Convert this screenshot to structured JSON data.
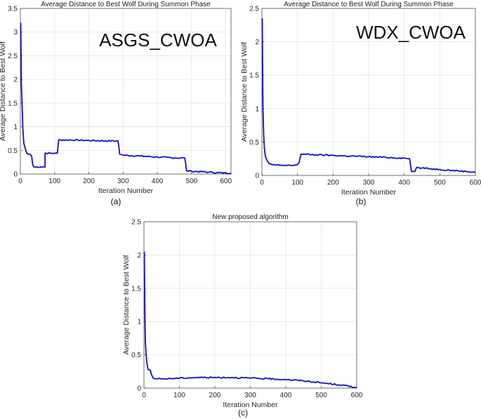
{
  "chart_data": [
    {
      "panel_label": "(a)",
      "type": "line",
      "title": "Average Distance to Best Wolf During Summon Phase",
      "overlay_text": "ASGS_CWOA",
      "xlabel": "Iteration Number",
      "ylabel": "Average Distance to Best Wolf",
      "xlim": [
        0,
        615
      ],
      "ylim": [
        0,
        3.5
      ],
      "xticks": [
        0,
        100,
        200,
        300,
        400,
        500,
        600
      ],
      "yticks": [
        0,
        0.5,
        1,
        1.5,
        2,
        2.5,
        3,
        3.5
      ],
      "grid": true,
      "series": [
        {
          "color": "#1010c8",
          "x": [
            1,
            2,
            3,
            5,
            7,
            10,
            14,
            18,
            22,
            28,
            33,
            36,
            38,
            40,
            60,
            72,
            72,
            75,
            95,
            108,
            110,
            112,
            150,
            200,
            250,
            285,
            288,
            290,
            300,
            350,
            400,
            450,
            480,
            483,
            485,
            500,
            550,
            600,
            615
          ],
          "y": [
            3.2,
            2.6,
            1.9,
            1.5,
            1.0,
            0.65,
            0.55,
            0.45,
            0.42,
            0.42,
            0.38,
            0.2,
            0.17,
            0.15,
            0.15,
            0.15,
            0.44,
            0.44,
            0.44,
            0.44,
            0.6,
            0.72,
            0.72,
            0.71,
            0.7,
            0.7,
            0.55,
            0.42,
            0.4,
            0.38,
            0.36,
            0.34,
            0.34,
            0.2,
            0.07,
            0.06,
            0.04,
            0.02,
            0.02
          ]
        }
      ]
    },
    {
      "panel_label": "(b)",
      "type": "line",
      "title": "Average Distance to Best Wolf During Summon Phase",
      "overlay_text": "WDX_CWOA",
      "xlabel": "Iteration Number",
      "ylabel": "Average Distance to Best Wolf",
      "xlim": [
        0,
        600
      ],
      "ylim": [
        0,
        2.5
      ],
      "xticks": [
        0,
        100,
        200,
        300,
        400,
        500,
        600
      ],
      "yticks": [
        0,
        0.5,
        1,
        1.5,
        2,
        2.5
      ],
      "grid": true,
      "series": [
        {
          "color": "#1010c8",
          "x": [
            1,
            2,
            3,
            5,
            7,
            10,
            15,
            20,
            30,
            50,
            80,
            100,
            105,
            108,
            110,
            150,
            200,
            250,
            300,
            350,
            400,
            415,
            418,
            420,
            430,
            433,
            435,
            450,
            500,
            550,
            600
          ],
          "y": [
            2.35,
            1.6,
            1.0,
            0.6,
            0.4,
            0.28,
            0.22,
            0.18,
            0.16,
            0.15,
            0.15,
            0.16,
            0.2,
            0.28,
            0.32,
            0.31,
            0.3,
            0.29,
            0.28,
            0.27,
            0.26,
            0.25,
            0.15,
            0.06,
            0.06,
            0.1,
            0.12,
            0.11,
            0.09,
            0.07,
            0.05
          ]
        }
      ]
    },
    {
      "panel_label": "(c)",
      "type": "line",
      "title": "New proposed algorithm",
      "xlabel": "Iteration Number",
      "ylabel": "Average Distance to Best Wolf",
      "xlim": [
        0,
        600
      ],
      "ylim": [
        0,
        2.5
      ],
      "xticks": [
        0,
        100,
        200,
        300,
        400,
        500,
        600
      ],
      "yticks": [
        0,
        0.5,
        1,
        1.5,
        2,
        2.5
      ],
      "grid": true,
      "series": [
        {
          "color": "#1010c8",
          "x": [
            1,
            2,
            3,
            4,
            6,
            8,
            10,
            12,
            15,
            18,
            20,
            25,
            30,
            40,
            60,
            100,
            150,
            200,
            250,
            300,
            350,
            400,
            450,
            500,
            550,
            600
          ],
          "y": [
            2.05,
            1.5,
            1.0,
            0.7,
            0.5,
            0.4,
            0.32,
            0.28,
            0.27,
            0.27,
            0.22,
            0.16,
            0.14,
            0.14,
            0.14,
            0.15,
            0.16,
            0.16,
            0.16,
            0.15,
            0.14,
            0.13,
            0.11,
            0.08,
            0.05,
            0.01
          ]
        }
      ]
    }
  ]
}
